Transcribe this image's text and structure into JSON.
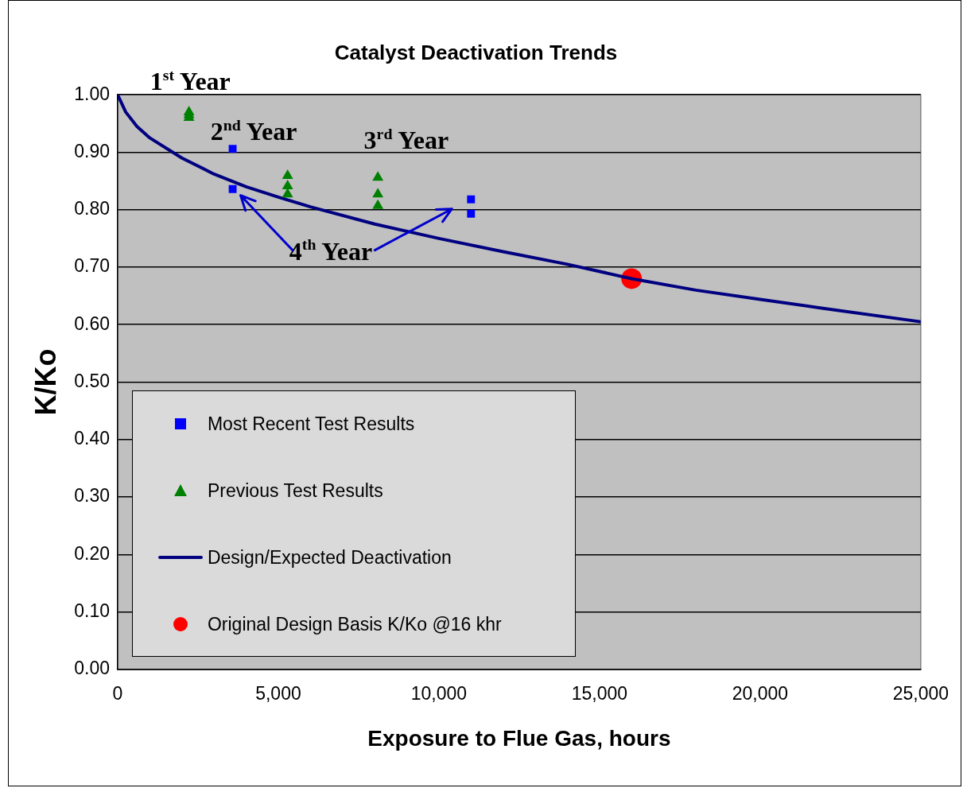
{
  "chart_data": {
    "type": "scatter",
    "title": "Catalyst Deactivation Trends",
    "xlabel": "Exposure to Flue Gas, hours",
    "ylabel": "K/Ko",
    "xlim": [
      0,
      25000
    ],
    "xticks": [
      {
        "value": 0,
        "label": "0"
      },
      {
        "value": 5000,
        "label": "5,000"
      },
      {
        "value": 10000,
        "label": "10,000"
      },
      {
        "value": 15000,
        "label": "15,000"
      },
      {
        "value": 20000,
        "label": "20,000"
      },
      {
        "value": 25000,
        "label": "25,000"
      }
    ],
    "ylim": [
      0,
      1
    ],
    "yticks": [
      {
        "value": 0,
        "label": "0.00"
      },
      {
        "value": 0.1,
        "label": "0.10"
      },
      {
        "value": 0.2,
        "label": "0.20"
      },
      {
        "value": 0.3,
        "label": "0.30"
      },
      {
        "value": 0.4,
        "label": "0.40"
      },
      {
        "value": 0.5,
        "label": "0.50"
      },
      {
        "value": 0.6,
        "label": "0.60"
      },
      {
        "value": 0.7,
        "label": "0.70"
      },
      {
        "value": 0.8,
        "label": "0.80"
      },
      {
        "value": 0.9,
        "label": "0.90"
      },
      {
        "value": 1,
        "label": "1.00"
      }
    ],
    "grid": "y",
    "legend": "bottom left",
    "series": [
      {
        "name": "Most Recent Test Results",
        "marker": "square",
        "color": "#0000ff",
        "x": [
          3580,
          3580,
          11000,
          11000
        ],
        "values": [
          0.906,
          0.836,
          0.818,
          0.793
        ]
      },
      {
        "name": "Previous Test Results",
        "marker": "triangle",
        "color": "#008000",
        "x": [
          2220,
          2220,
          2220,
          5290,
          5290,
          5290,
          8100,
          8100,
          8100
        ],
        "values": [
          0.97,
          0.965,
          0.96,
          0.859,
          0.841,
          0.827,
          0.856,
          0.827,
          0.807
        ]
      },
      {
        "name": "Design/Expected Deactivation",
        "type": "line",
        "marker": "none",
        "color": "#000080",
        "x": [
          0,
          250,
          600,
          1000,
          2000,
          3000,
          4000,
          5000,
          6000,
          8000,
          10000,
          12000,
          14000,
          16000,
          18000,
          20000,
          22000,
          25000
        ],
        "values": [
          1.0,
          0.97,
          0.945,
          0.925,
          0.89,
          0.862,
          0.84,
          0.822,
          0.805,
          0.775,
          0.75,
          0.727,
          0.705,
          0.68,
          0.66,
          0.644,
          0.628,
          0.605
        ]
      },
      {
        "name": "Original Design Basis K/Ko @16 khr",
        "marker": "circle",
        "color": "#ff0000",
        "x": [
          16000
        ],
        "values": [
          0.68
        ]
      }
    ],
    "annotations": [
      "1$^{st}$ Year",
      "2$^{nd}$ Year",
      "3$^{rd}$ Year",
      "4$^{th}$ Year"
    ]
  }
}
